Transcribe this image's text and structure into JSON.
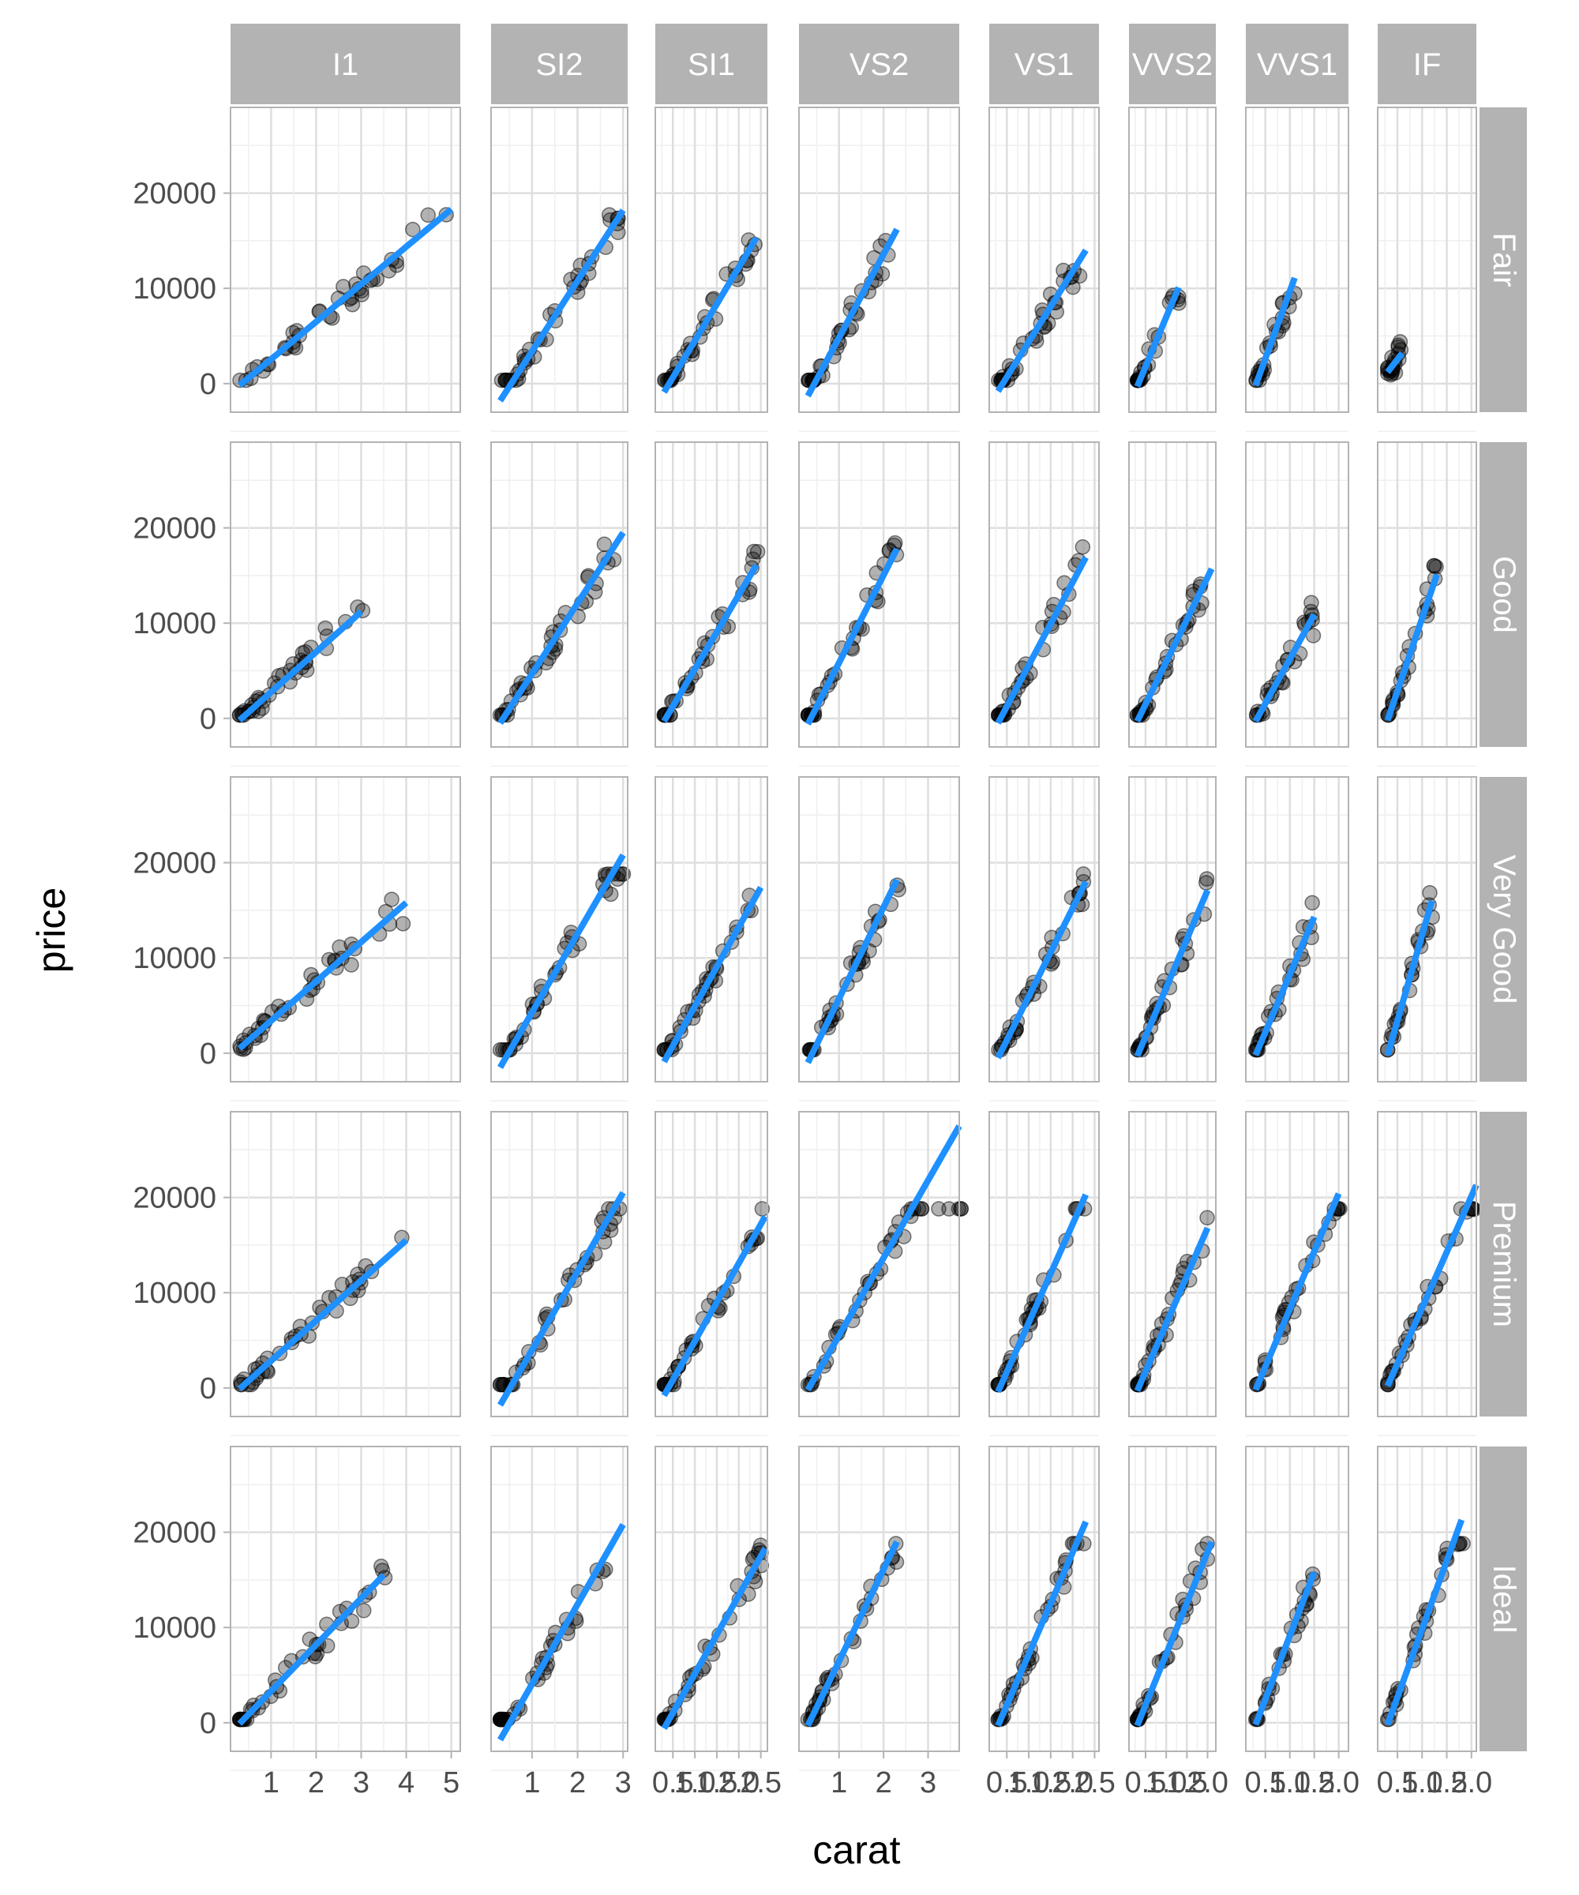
{
  "chart_data": {
    "type": "scatter",
    "xlabel": "carat",
    "ylabel": "price",
    "facet_columns": [
      "I1",
      "SI2",
      "SI1",
      "VS2",
      "VS1",
      "VVS2",
      "VVS1",
      "IF"
    ],
    "facet_rows": [
      "Fair",
      "Good",
      "Very Good",
      "Premium",
      "Ideal"
    ],
    "ylim": [
      -3000,
      29000
    ],
    "y_ticks": [
      "20000",
      "10000",
      "0"
    ],
    "y_tick_values": [
      20000,
      10000,
      0
    ],
    "x_ranges": [
      [
        0.1,
        5.2
      ],
      [
        0.1,
        3.1
      ],
      [
        0.1,
        2.65
      ],
      [
        0.1,
        3.7
      ],
      [
        0.1,
        2.6
      ],
      [
        0.1,
        2.2
      ],
      [
        0.1,
        2.2
      ],
      [
        0.1,
        2.1
      ]
    ],
    "x_ticks": [
      [
        "1",
        "2",
        "3",
        "4",
        "5"
      ],
      [
        "1",
        "2",
        "3"
      ],
      [
        "0.5",
        "1.0",
        "1.5",
        "2.0",
        "2.5"
      ],
      [
        "1",
        "2",
        "3"
      ],
      [
        "0.5",
        "1.0",
        "1.5",
        "2.0",
        "2.5"
      ],
      [
        "0.5",
        "1.0",
        "1.5",
        "2.0"
      ],
      [
        "0.5",
        "1.0",
        "1.5",
        "2.0"
      ],
      [
        "0.5",
        "1.0",
        "1.5",
        "2.0"
      ]
    ],
    "x_tick_values": [
      [
        1,
        2,
        3,
        4,
        5
      ],
      [
        1,
        2,
        3
      ],
      [
        0.5,
        1.0,
        1.5,
        2.0,
        2.5
      ],
      [
        1,
        2,
        3
      ],
      [
        0.5,
        1.0,
        1.5,
        2.0,
        2.5
      ],
      [
        0.5,
        1.0,
        1.5,
        2.0
      ],
      [
        0.5,
        1.0,
        1.5,
        2.0
      ],
      [
        0.5,
        1.0,
        1.5,
        2.0
      ]
    ],
    "fit_lines": [
      [
        [
          0.3,
          -200,
          5.0,
          18300
        ],
        [
          0.3,
          -200,
          3.0,
          11200
        ],
        [
          0.3,
          500,
          4.0,
          15800
        ],
        [
          0.3,
          -100,
          4.0,
          15500
        ],
        [
          0.3,
          -100,
          3.5,
          15500
        ]
      ],
      [
        [
          0.3,
          -1800,
          3.0,
          18200
        ],
        [
          0.3,
          -500,
          3.0,
          19500
        ],
        [
          0.3,
          -1500,
          3.0,
          20800
        ],
        [
          0.3,
          -1800,
          3.0,
          20500
        ],
        [
          0.3,
          -1800,
          3.0,
          20800
        ]
      ],
      [
        [
          0.3,
          -900,
          2.4,
          15300
        ],
        [
          0.3,
          -300,
          2.4,
          16100
        ],
        [
          0.3,
          -900,
          2.5,
          17400
        ],
        [
          0.3,
          -800,
          2.6,
          18000
        ],
        [
          0.3,
          -600,
          2.6,
          18300
        ]
      ],
      [
        [
          0.3,
          -1300,
          2.3,
          16200
        ],
        [
          0.3,
          -600,
          2.3,
          17800
        ],
        [
          0.3,
          -1000,
          2.3,
          18200
        ],
        [
          0.3,
          -200,
          3.7,
          27500
        ],
        [
          0.3,
          -300,
          2.3,
          19000
        ]
      ],
      [
        [
          0.3,
          -800,
          2.3,
          14000
        ],
        [
          0.3,
          -500,
          2.3,
          16900
        ],
        [
          0.3,
          -500,
          2.3,
          18000
        ],
        [
          0.3,
          -400,
          2.3,
          20300
        ],
        [
          0.3,
          -300,
          2.3,
          21100
        ]
      ],
      [
        [
          0.3,
          -300,
          1.3,
          10100
        ],
        [
          0.3,
          -300,
          2.1,
          15700
        ],
        [
          0.3,
          -300,
          2.0,
          17100
        ],
        [
          0.3,
          -300,
          2.0,
          16800
        ],
        [
          0.3,
          -300,
          2.1,
          19000
        ]
      ],
      [
        [
          0.3,
          -200,
          1.1,
          11100
        ],
        [
          0.3,
          -300,
          1.5,
          10900
        ],
        [
          0.3,
          -200,
          1.5,
          14300
        ],
        [
          0.3,
          -200,
          2.0,
          20400
        ],
        [
          0.3,
          -200,
          1.5,
          15800
        ]
      ],
      [
        [
          0.3,
          1200,
          0.6,
          3200
        ],
        [
          0.3,
          -200,
          1.3,
          15100
        ],
        [
          0.3,
          -200,
          1.2,
          16000
        ],
        [
          0.3,
          200,
          2.1,
          21300
        ],
        [
          0.3,
          -200,
          1.8,
          21300
        ]
      ]
    ],
    "point_color": "#000000",
    "point_opacity": 0.3,
    "fit_line_color": "#1e90ff",
    "strip_color": "#b3b3b3",
    "grid": true
  }
}
